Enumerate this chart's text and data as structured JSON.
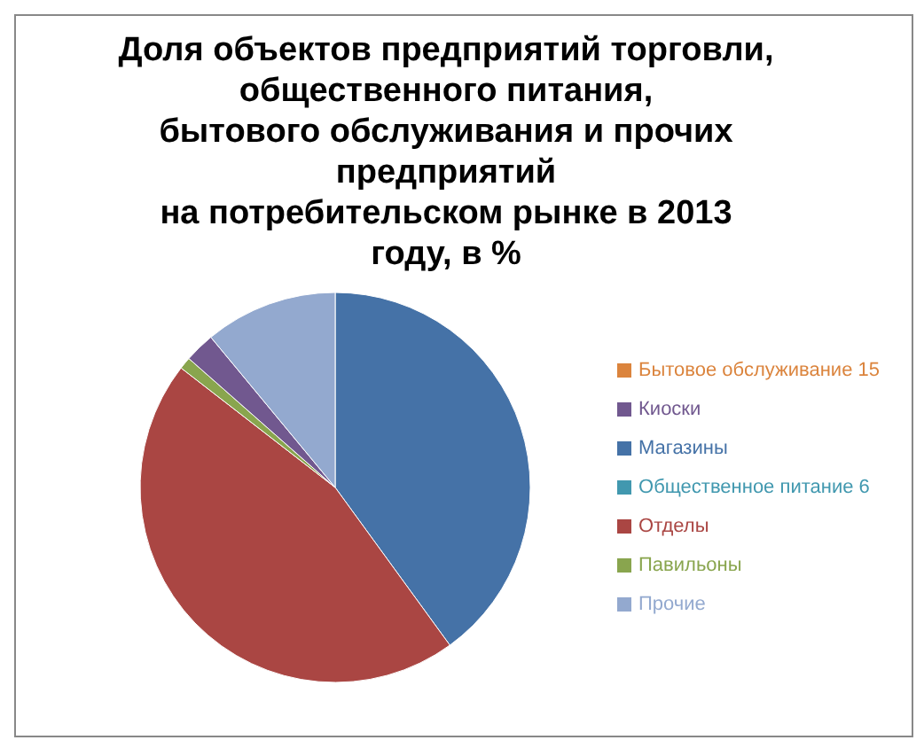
{
  "chart_data": {
    "type": "pie",
    "title": "Доля объектов предприятий торговли,\nобщественного питания,\nбытового обслуживания и прочих\nпредприятий\nна потребительском рынке в 2013\nгоду, в %",
    "categories": [
      "Магазины",
      "Отделы",
      "Павильоны",
      "Киоски",
      "Общественное питание 6",
      "Бытовое обслуживание 15",
      "Прочие"
    ],
    "values": [
      40,
      45.5,
      1,
      2.5,
      0,
      0,
      11
    ],
    "colors": [
      "#4572a7",
      "#aa4643",
      "#89a54e",
      "#71588f",
      "#4198af",
      "#db843d",
      "#93a9cf"
    ],
    "legend": "right"
  }
}
